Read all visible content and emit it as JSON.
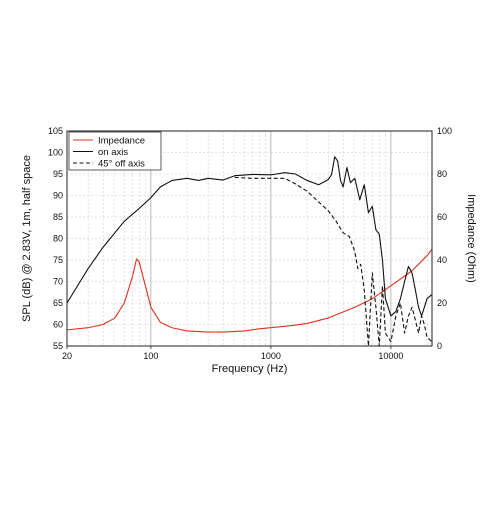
{
  "chart_data": {
    "type": "line",
    "title": "",
    "xlabel": "Frequency (Hz)",
    "ylabel": "SPL (dB) @ 2.83V, 1m, half space",
    "y2label": "Impedance (Ohm)",
    "x_scale": "log",
    "xlim": [
      20,
      22000
    ],
    "ylim": [
      55,
      105
    ],
    "y2lim": [
      0,
      100
    ],
    "grid": true,
    "legend_position": "top-left",
    "x_ticks": [
      20,
      100,
      1000,
      10000
    ],
    "x_tick_labels": [
      "20",
      "100",
      "1000",
      "10000"
    ],
    "y_ticks": [
      55,
      60,
      65,
      70,
      75,
      80,
      85,
      90,
      95,
      100,
      105
    ],
    "y_tick_labels": [
      "55",
      "60",
      "65",
      "70",
      "75",
      "80",
      "85",
      "90",
      "95",
      "100",
      "105"
    ],
    "y2_ticks": [
      0,
      20,
      40,
      60,
      80,
      100
    ],
    "y2_tick_labels": [
      "0",
      "20",
      "40",
      "60",
      "80",
      "100"
    ],
    "series": [
      {
        "name": "Impedance",
        "axis": "right",
        "color": "#e0301e",
        "dash": "solid",
        "points": [
          [
            20,
            7.5
          ],
          [
            30,
            8.5
          ],
          [
            40,
            10
          ],
          [
            50,
            13
          ],
          [
            60,
            20
          ],
          [
            70,
            32
          ],
          [
            76,
            40.5
          ],
          [
            80,
            39
          ],
          [
            90,
            28
          ],
          [
            100,
            18
          ],
          [
            120,
            11
          ],
          [
            150,
            8.5
          ],
          [
            200,
            7
          ],
          [
            300,
            6.5
          ],
          [
            400,
            6.5
          ],
          [
            600,
            7
          ],
          [
            800,
            8
          ],
          [
            1000,
            8.5
          ],
          [
            1500,
            9.5
          ],
          [
            2000,
            10.5
          ],
          [
            3000,
            13
          ],
          [
            5000,
            18
          ],
          [
            7000,
            22
          ],
          [
            10000,
            28
          ],
          [
            15000,
            35
          ],
          [
            20000,
            42
          ],
          [
            22000,
            45
          ]
        ]
      },
      {
        "name": "on axis",
        "axis": "left",
        "color": "#111111",
        "dash": "solid",
        "points": [
          [
            20,
            65
          ],
          [
            30,
            73
          ],
          [
            40,
            78
          ],
          [
            60,
            84
          ],
          [
            80,
            87
          ],
          [
            100,
            89.5
          ],
          [
            120,
            92
          ],
          [
            150,
            93.5
          ],
          [
            200,
            94
          ],
          [
            250,
            93.5
          ],
          [
            300,
            94
          ],
          [
            400,
            93.6
          ],
          [
            500,
            94.6
          ],
          [
            700,
            94.9
          ],
          [
            1000,
            94.8
          ],
          [
            1300,
            95.3
          ],
          [
            1600,
            95
          ],
          [
            2000,
            93.5
          ],
          [
            2500,
            92.5
          ],
          [
            3000,
            93.7
          ],
          [
            3200,
            94.8
          ],
          [
            3400,
            99
          ],
          [
            3600,
            98
          ],
          [
            3800,
            93.5
          ],
          [
            4000,
            92
          ],
          [
            4300,
            96.5
          ],
          [
            4600,
            93
          ],
          [
            5000,
            94
          ],
          [
            5500,
            89
          ],
          [
            6000,
            92.5
          ],
          [
            6500,
            86
          ],
          [
            7000,
            87.5
          ],
          [
            7500,
            82
          ],
          [
            8000,
            81
          ],
          [
            8500,
            75
          ],
          [
            9000,
            66
          ],
          [
            10000,
            62
          ],
          [
            11000,
            63
          ],
          [
            12000,
            66
          ],
          [
            13000,
            70
          ],
          [
            14000,
            73.5
          ],
          [
            15000,
            72
          ],
          [
            16000,
            68
          ],
          [
            17000,
            64
          ],
          [
            18000,
            62
          ],
          [
            19000,
            64
          ],
          [
            20000,
            66
          ],
          [
            22000,
            67
          ]
        ]
      },
      {
        "name": "45° off axis",
        "axis": "left",
        "color": "#111111",
        "dash": "dashed",
        "points": [
          [
            500,
            94.2
          ],
          [
            700,
            94
          ],
          [
            1000,
            94
          ],
          [
            1300,
            94
          ],
          [
            1600,
            92.7
          ],
          [
            2000,
            91
          ],
          [
            2500,
            88.5
          ],
          [
            3000,
            86.5
          ],
          [
            3500,
            84
          ],
          [
            4000,
            81.3
          ],
          [
            4500,
            80.5
          ],
          [
            5000,
            77
          ],
          [
            5300,
            73
          ],
          [
            5600,
            74
          ],
          [
            6000,
            68
          ],
          [
            6500,
            55
          ],
          [
            7000,
            72
          ],
          [
            7500,
            64
          ],
          [
            8000,
            55
          ],
          [
            8500,
            69
          ],
          [
            9000,
            58
          ],
          [
            10000,
            56
          ],
          [
            11000,
            62
          ],
          [
            12000,
            65
          ],
          [
            13000,
            58
          ],
          [
            14000,
            62
          ],
          [
            15000,
            64
          ],
          [
            16000,
            61
          ],
          [
            17000,
            58
          ],
          [
            18000,
            62
          ],
          [
            19000,
            60
          ],
          [
            20000,
            57
          ],
          [
            22000,
            56
          ]
        ]
      }
    ]
  }
}
